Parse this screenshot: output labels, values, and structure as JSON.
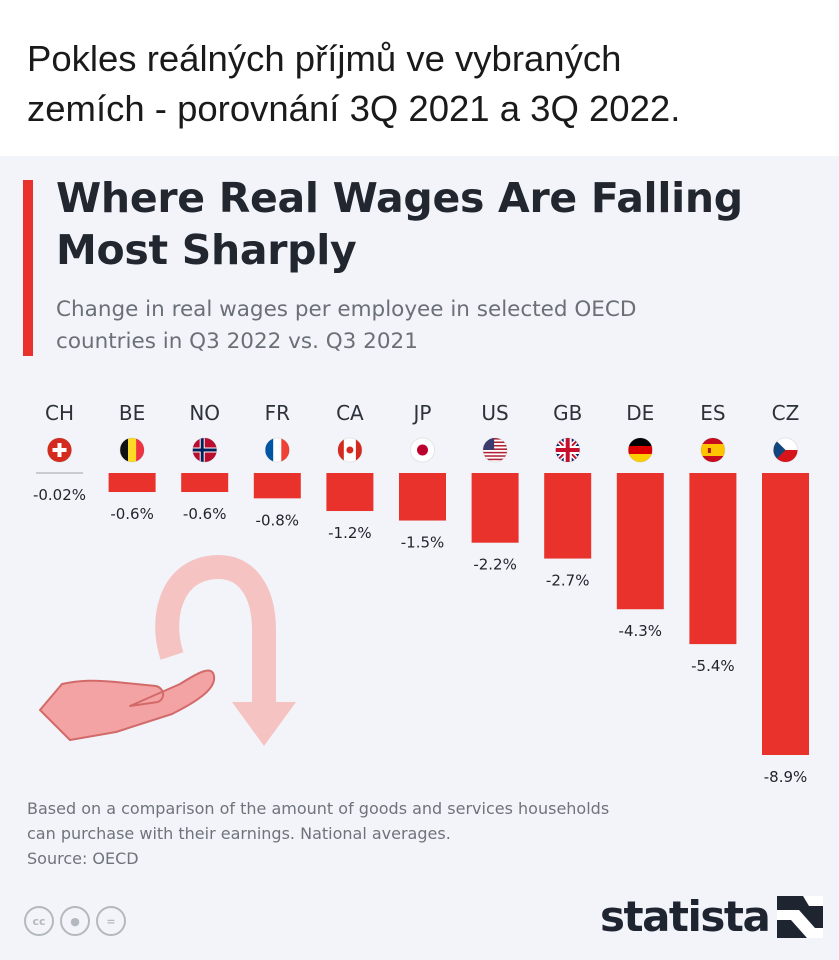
{
  "post": {
    "caption_line1": "Pokles reálných příjmů ve vybraných",
    "caption_line2": "zemích - porovnání 3Q 2021 a 3Q 2022."
  },
  "infographic": {
    "title_line1": "Where Real Wages Are Falling",
    "title_line2": "Most Sharply",
    "subtitle_line1": "Change in real wages per employee in selected OECD",
    "subtitle_line2": "countries in Q3 2022 vs. Q3 2021",
    "note_line1": "Based on a comparison of the amount of goods and services households",
    "note_line2": "can purchase with their earnings. National averages.",
    "source": "Source: OECD",
    "brand": "statista",
    "license_icons": [
      "cc-icon",
      "by-person-icon",
      "nd-equals-icon"
    ]
  },
  "colors": {
    "bar": "#e8322b",
    "accent": "#e8322b",
    "decoration": "#f3a3a3"
  },
  "chart_data": {
    "type": "bar",
    "categories": [
      "CH",
      "BE",
      "NO",
      "FR",
      "CA",
      "JP",
      "US",
      "GB",
      "DE",
      "ES",
      "CZ"
    ],
    "values": [
      -0.02,
      -0.6,
      -0.6,
      -0.8,
      -1.2,
      -1.5,
      -2.2,
      -2.7,
      -4.3,
      -5.4,
      -8.9
    ],
    "labels": [
      "-0.02%",
      "-0.6%",
      "-0.6%",
      "-0.8%",
      "-1.2%",
      "-1.5%",
      "-2.2%",
      "-2.7%",
      "-4.3%",
      "-5.4%",
      "-8.9%"
    ],
    "flags": [
      "switzerland-flag-icon",
      "belgium-flag-icon",
      "norway-flag-icon",
      "france-flag-icon",
      "canada-flag-icon",
      "japan-flag-icon",
      "usa-flag-icon",
      "uk-flag-icon",
      "germany-flag-icon",
      "spain-flag-icon",
      "czechia-flag-icon"
    ],
    "ylim": [
      -8.9,
      0
    ],
    "unit": "%",
    "grid": false,
    "legend": "none"
  }
}
